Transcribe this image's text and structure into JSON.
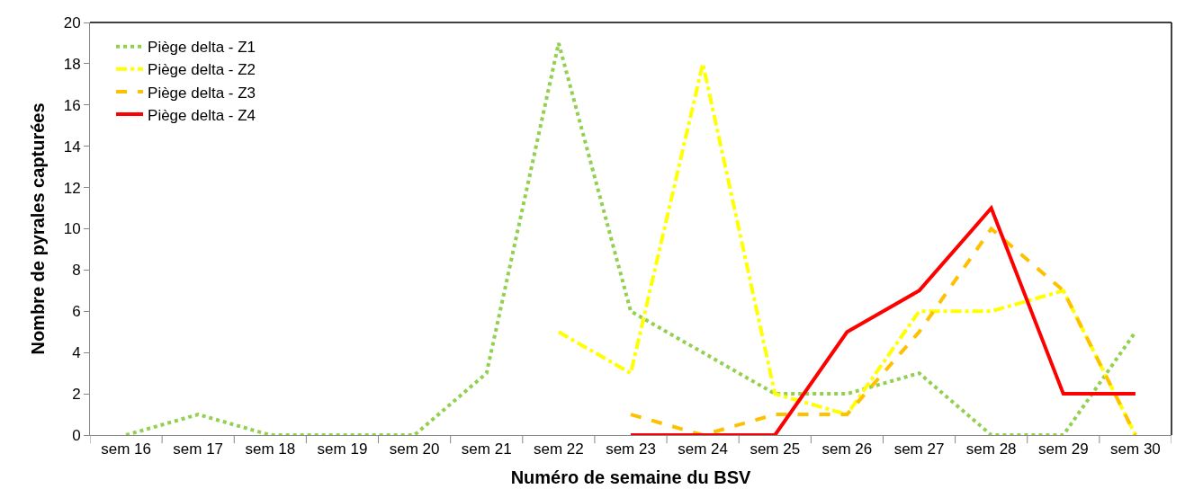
{
  "chart_data": {
    "type": "line",
    "xlabel": "Numéro de semaine du BSV",
    "ylabel": "Nombre de pyrales capturées",
    "categories": [
      "sem 16",
      "sem 17",
      "sem 18",
      "sem 19",
      "sem 20",
      "sem 21",
      "sem 22",
      "sem 23",
      "sem 24",
      "sem 25",
      "sem 26",
      "sem 27",
      "sem 28",
      "sem 29",
      "sem 30"
    ],
    "series": [
      {
        "name": "Piège delta - Z1",
        "color": "#92d050",
        "line_style": "dotted",
        "values": [
          0,
          1,
          0,
          0,
          0,
          3,
          19,
          6,
          4,
          2,
          2,
          3,
          0,
          0,
          5
        ]
      },
      {
        "name": "Piège delta - Z2",
        "color": "#ffff00",
        "line_style": "dashdot",
        "values": [
          null,
          null,
          null,
          null,
          null,
          null,
          5,
          3,
          18,
          2,
          1,
          6,
          6,
          7,
          0
        ]
      },
      {
        "name": "Piège delta - Z3",
        "color": "#ffc000",
        "line_style": "dashed",
        "values": [
          null,
          null,
          null,
          null,
          null,
          null,
          null,
          1,
          0,
          1,
          1,
          5,
          10,
          7,
          0
        ]
      },
      {
        "name": "Piège delta - Z4",
        "color": "#ff0000",
        "line_style": "solid",
        "values": [
          null,
          null,
          null,
          null,
          null,
          null,
          null,
          0,
          0,
          0,
          5,
          7,
          11,
          2,
          2
        ]
      }
    ],
    "ylim": [
      0,
      20
    ],
    "yticks": [
      0,
      2,
      4,
      6,
      8,
      10,
      12,
      14,
      16,
      18,
      20
    ],
    "legend": "top left",
    "marker": "none"
  }
}
